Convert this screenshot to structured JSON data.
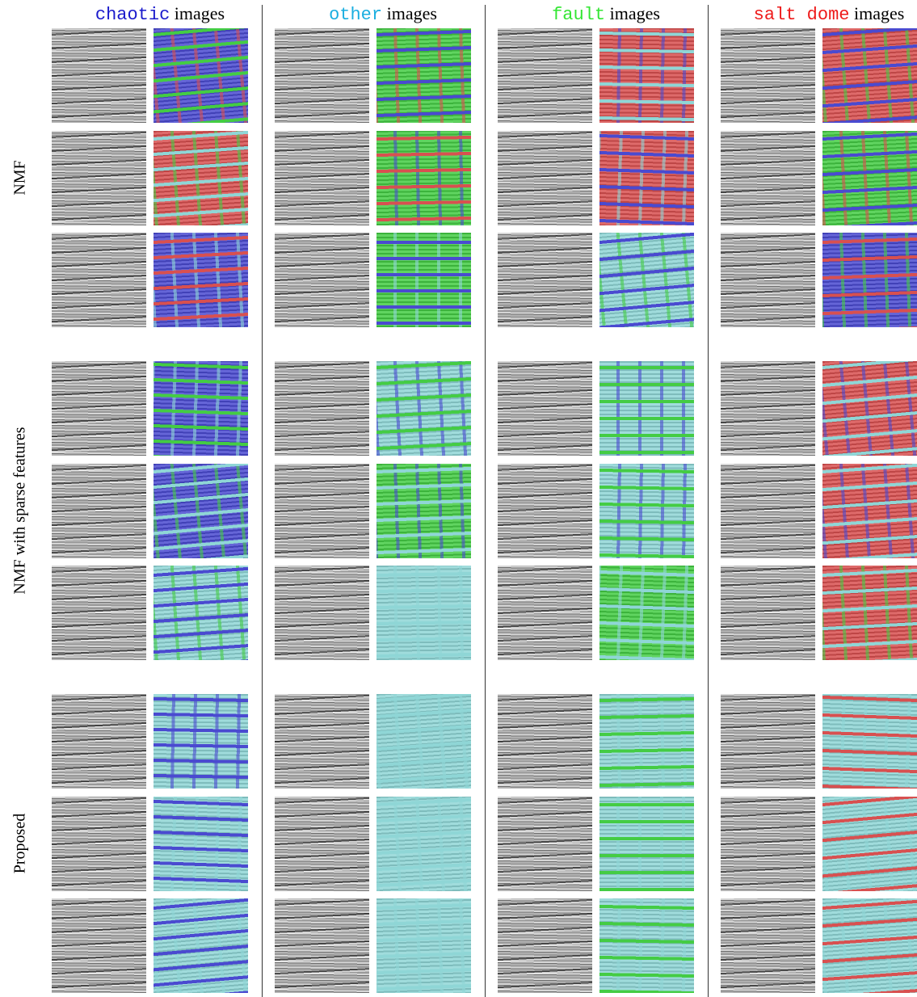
{
  "columns": [
    {
      "keyword": "chaotic",
      "suffix": "images",
      "color": "#1a1acc"
    },
    {
      "keyword": "other",
      "suffix": "images",
      "color": "#1aaee0"
    },
    {
      "keyword": "fault",
      "suffix": "images",
      "color": "#33e633"
    },
    {
      "keyword": "salt dome",
      "suffix": "images",
      "color": "#ee1a1a"
    }
  ],
  "rows": [
    {
      "label": "NMF"
    },
    {
      "label": "NMF with sparse features"
    },
    {
      "label": "Proposed"
    }
  ]
}
